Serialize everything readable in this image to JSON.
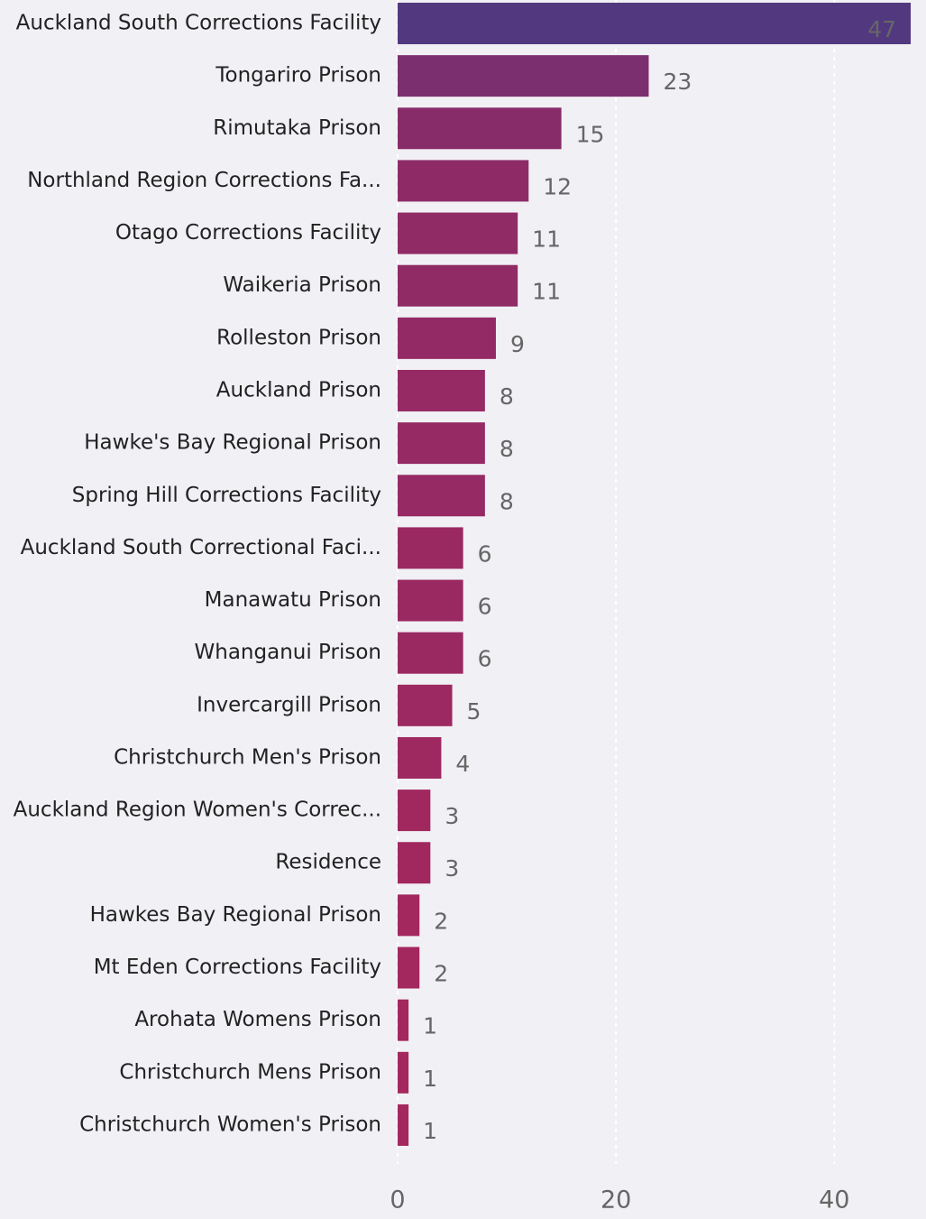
{
  "chart_data": {
    "type": "barh",
    "categories": [
      "Auckland South Corrections Facility",
      "Tongariro Prison",
      "Rimutaka Prison",
      "Northland Region Corrections Fa...",
      "Otago Corrections Facility",
      "Waikeria Prison",
      "Rolleston Prison",
      "Auckland Prison",
      "Hawke's Bay Regional Prison",
      "Spring Hill Corrections Facility",
      "Auckland South Correctional Faci...",
      "Manawatu Prison",
      "Whanganui Prison",
      "Invercargill Prison",
      "Christchurch Men's Prison",
      "Auckland Region Women's Correc...",
      "Residence",
      "Hawkes Bay Regional Prison",
      "Mt Eden Corrections Facility",
      "Arohata Womens Prison",
      "Christchurch Mens Prison",
      "Christchurch Women's Prison"
    ],
    "values": [
      47,
      23,
      15,
      12,
      11,
      11,
      9,
      8,
      8,
      8,
      6,
      6,
      6,
      5,
      4,
      3,
      3,
      2,
      2,
      1,
      1,
      1
    ],
    "colors": [
      "#52397f",
      "#7b2f6f",
      "#882c69",
      "#8e2b67",
      "#902b66",
      "#902b66",
      "#942a65",
      "#962a64",
      "#962a64",
      "#962a64",
      "#9a2962",
      "#9a2962",
      "#9a2962",
      "#9c2961",
      "#9e2960",
      "#a0285f",
      "#a0285f",
      "#a2285e",
      "#a2285e",
      "#a4285d",
      "#a4285d",
      "#a4285d"
    ],
    "xlim": [
      0,
      48.4
    ],
    "xticks": [
      0,
      20,
      40
    ],
    "grid": true
  }
}
